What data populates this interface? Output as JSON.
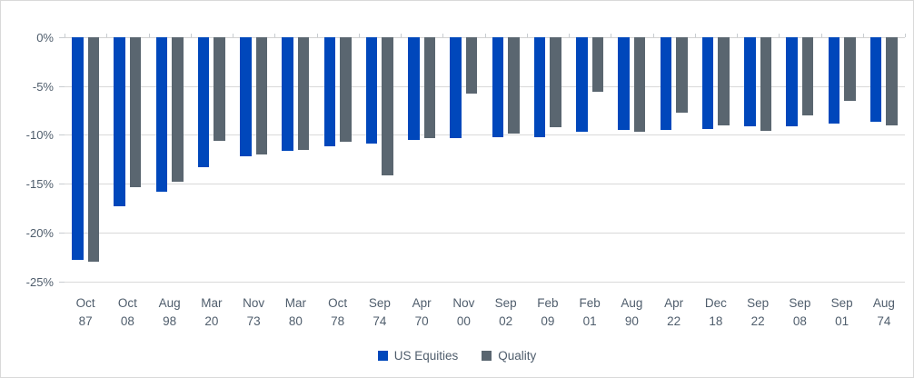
{
  "chart_data": {
    "type": "bar",
    "title": "",
    "orientation": "vertical",
    "value_format": "percent",
    "categories": [
      "Oct 87",
      "Oct 08",
      "Aug 98",
      "Mar 20",
      "Nov 73",
      "Mar 80",
      "Oct 78",
      "Sep 74",
      "Apr 70",
      "Nov 00",
      "Sep 02",
      "Feb 09",
      "Feb 01",
      "Aug 90",
      "Apr 22",
      "Dec 18",
      "Sep 22",
      "Sep 08",
      "Sep 01",
      "Aug 74"
    ],
    "series": [
      {
        "name": "US Equities",
        "color": "#0047BB",
        "values": [
          -22.8,
          -17.3,
          -15.8,
          -13.3,
          -12.2,
          -11.6,
          -11.2,
          -10.9,
          -10.5,
          -10.3,
          -10.2,
          -10.2,
          -9.7,
          -9.5,
          -9.5,
          -9.4,
          -9.1,
          -9.1,
          -8.8,
          -8.7
        ]
      },
      {
        "name": "Quality",
        "color": "#5A6670",
        "values": [
          -23.0,
          -15.4,
          -14.8,
          -10.6,
          -12.0,
          -11.5,
          -10.7,
          -14.1,
          -10.3,
          -5.8,
          -9.9,
          -9.2,
          -5.6,
          -9.7,
          -7.7,
          -9.0,
          -9.6,
          -8.0,
          -6.5,
          -9.0
        ]
      }
    ],
    "y_axis": {
      "min": -25,
      "max": 0,
      "step": 5,
      "tick_labels": [
        "0%",
        "-5%",
        "-10%",
        "-15%",
        "-20%",
        "-25%"
      ]
    },
    "grid": true,
    "legend_position": "bottom",
    "colors": {
      "gridline": "#D9D9D9",
      "axis_line": "#D2D2D2",
      "tick": "#C8CCD0",
      "label_text": "#4F5D6C",
      "background": "#FFFFFF",
      "frame_border": "#D9D9D9"
    }
  }
}
